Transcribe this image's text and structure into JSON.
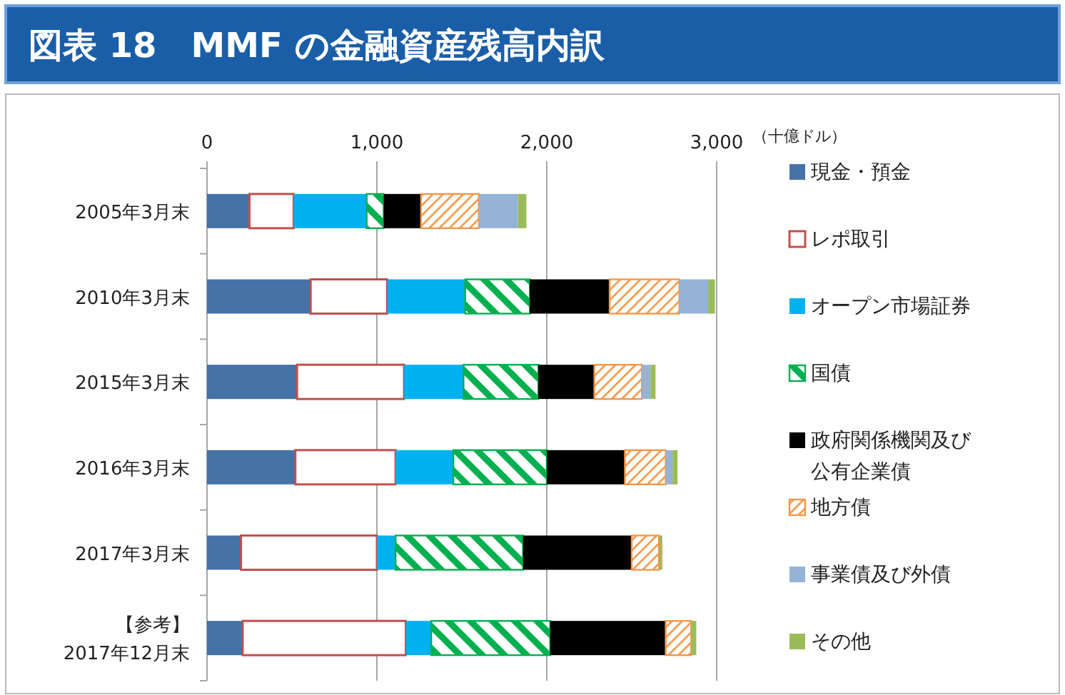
{
  "chart_data": {
    "type": "bar",
    "orientation": "horizontal",
    "stacked": true,
    "title": "図表 18　MMF の金融資産残高内訳",
    "annotations": [
      "（十億ドル）"
    ],
    "categories": [
      "2005年3月末",
      "2010年3月末",
      "2015年3月末",
      "2016年3月末",
      "2017年3月末",
      "【参考】\n2017年12月末"
    ],
    "series": [
      {
        "name": "現金・預金",
        "color": "#4572a7",
        "values": [
          250,
          610,
          530,
          520,
          200,
          210
        ]
      },
      {
        "name": "レポ取引",
        "color": "#c0504d",
        "values": [
          260,
          450,
          630,
          590,
          800,
          960
        ]
      },
      {
        "name": "オープン市場証券",
        "color": "#00b0f0",
        "values": [
          430,
          460,
          350,
          340,
          110,
          150
        ]
      },
      {
        "name": "国債",
        "color": "#00b050",
        "values": [
          100,
          380,
          440,
          550,
          750,
          700
        ]
      },
      {
        "name": "政府関係機関及び公有企業債",
        "color": "#000000",
        "values": [
          220,
          470,
          330,
          460,
          640,
          680
        ]
      },
      {
        "name": "地方債",
        "color": "#f79646",
        "values": [
          340,
          410,
          280,
          240,
          160,
          150
        ]
      },
      {
        "name": "事業債及び外債",
        "color": "#95b3d7",
        "values": [
          230,
          170,
          50,
          40,
          0,
          0
        ]
      },
      {
        "name": "その他",
        "color": "#9bbb59",
        "values": [
          50,
          40,
          30,
          30,
          20,
          30
        ]
      }
    ],
    "xlim": [
      0,
      3000
    ],
    "xticks": [
      0,
      {
        "value": 1000,
        "label": "1,000"
      },
      {
        "value": 2000,
        "label": "2,000"
      },
      {
        "value": 3000,
        "label": "3,000"
      }
    ],
    "grid": "x",
    "legend": "right"
  }
}
